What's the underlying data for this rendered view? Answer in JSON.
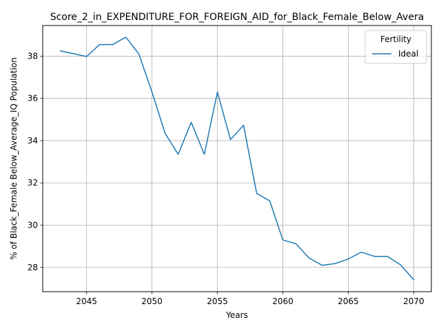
{
  "chart_data": {
    "type": "line",
    "title": "Score_2_in_EXPENDITURE_FOR_FOREIGN_AID_for_Black_Female_Below_Avera",
    "xlabel": "Years",
    "ylabel": "% of Black_Female Below_Average_IQ Population",
    "xlim": [
      2041.65,
      2071.35
    ],
    "ylim": [
      26.85,
      39.45
    ],
    "xticks": [
      2045,
      2050,
      2055,
      2060,
      2065,
      2070
    ],
    "yticks": [
      28,
      30,
      32,
      34,
      36,
      38
    ],
    "grid": true,
    "legend": {
      "title": "Fertility",
      "position": "top-right"
    },
    "series": [
      {
        "name": "Ideal",
        "color": "#1f77b4",
        "x": [
          2043,
          2045,
          2046,
          2047,
          2048,
          2049,
          2050,
          2051,
          2052,
          2053,
          2054,
          2055,
          2056,
          2057,
          2058,
          2059,
          2060,
          2061,
          2062,
          2063,
          2064,
          2065,
          2066,
          2067,
          2068,
          2069,
          2070
        ],
        "y": [
          38.25,
          37.98,
          38.55,
          38.55,
          38.9,
          38.1,
          36.3,
          34.35,
          33.35,
          34.87,
          33.35,
          36.3,
          34.05,
          34.73,
          31.5,
          31.15,
          29.3,
          29.12,
          28.45,
          28.1,
          28.18,
          28.4,
          28.72,
          28.52,
          28.52,
          28.12,
          27.42
        ]
      }
    ]
  }
}
